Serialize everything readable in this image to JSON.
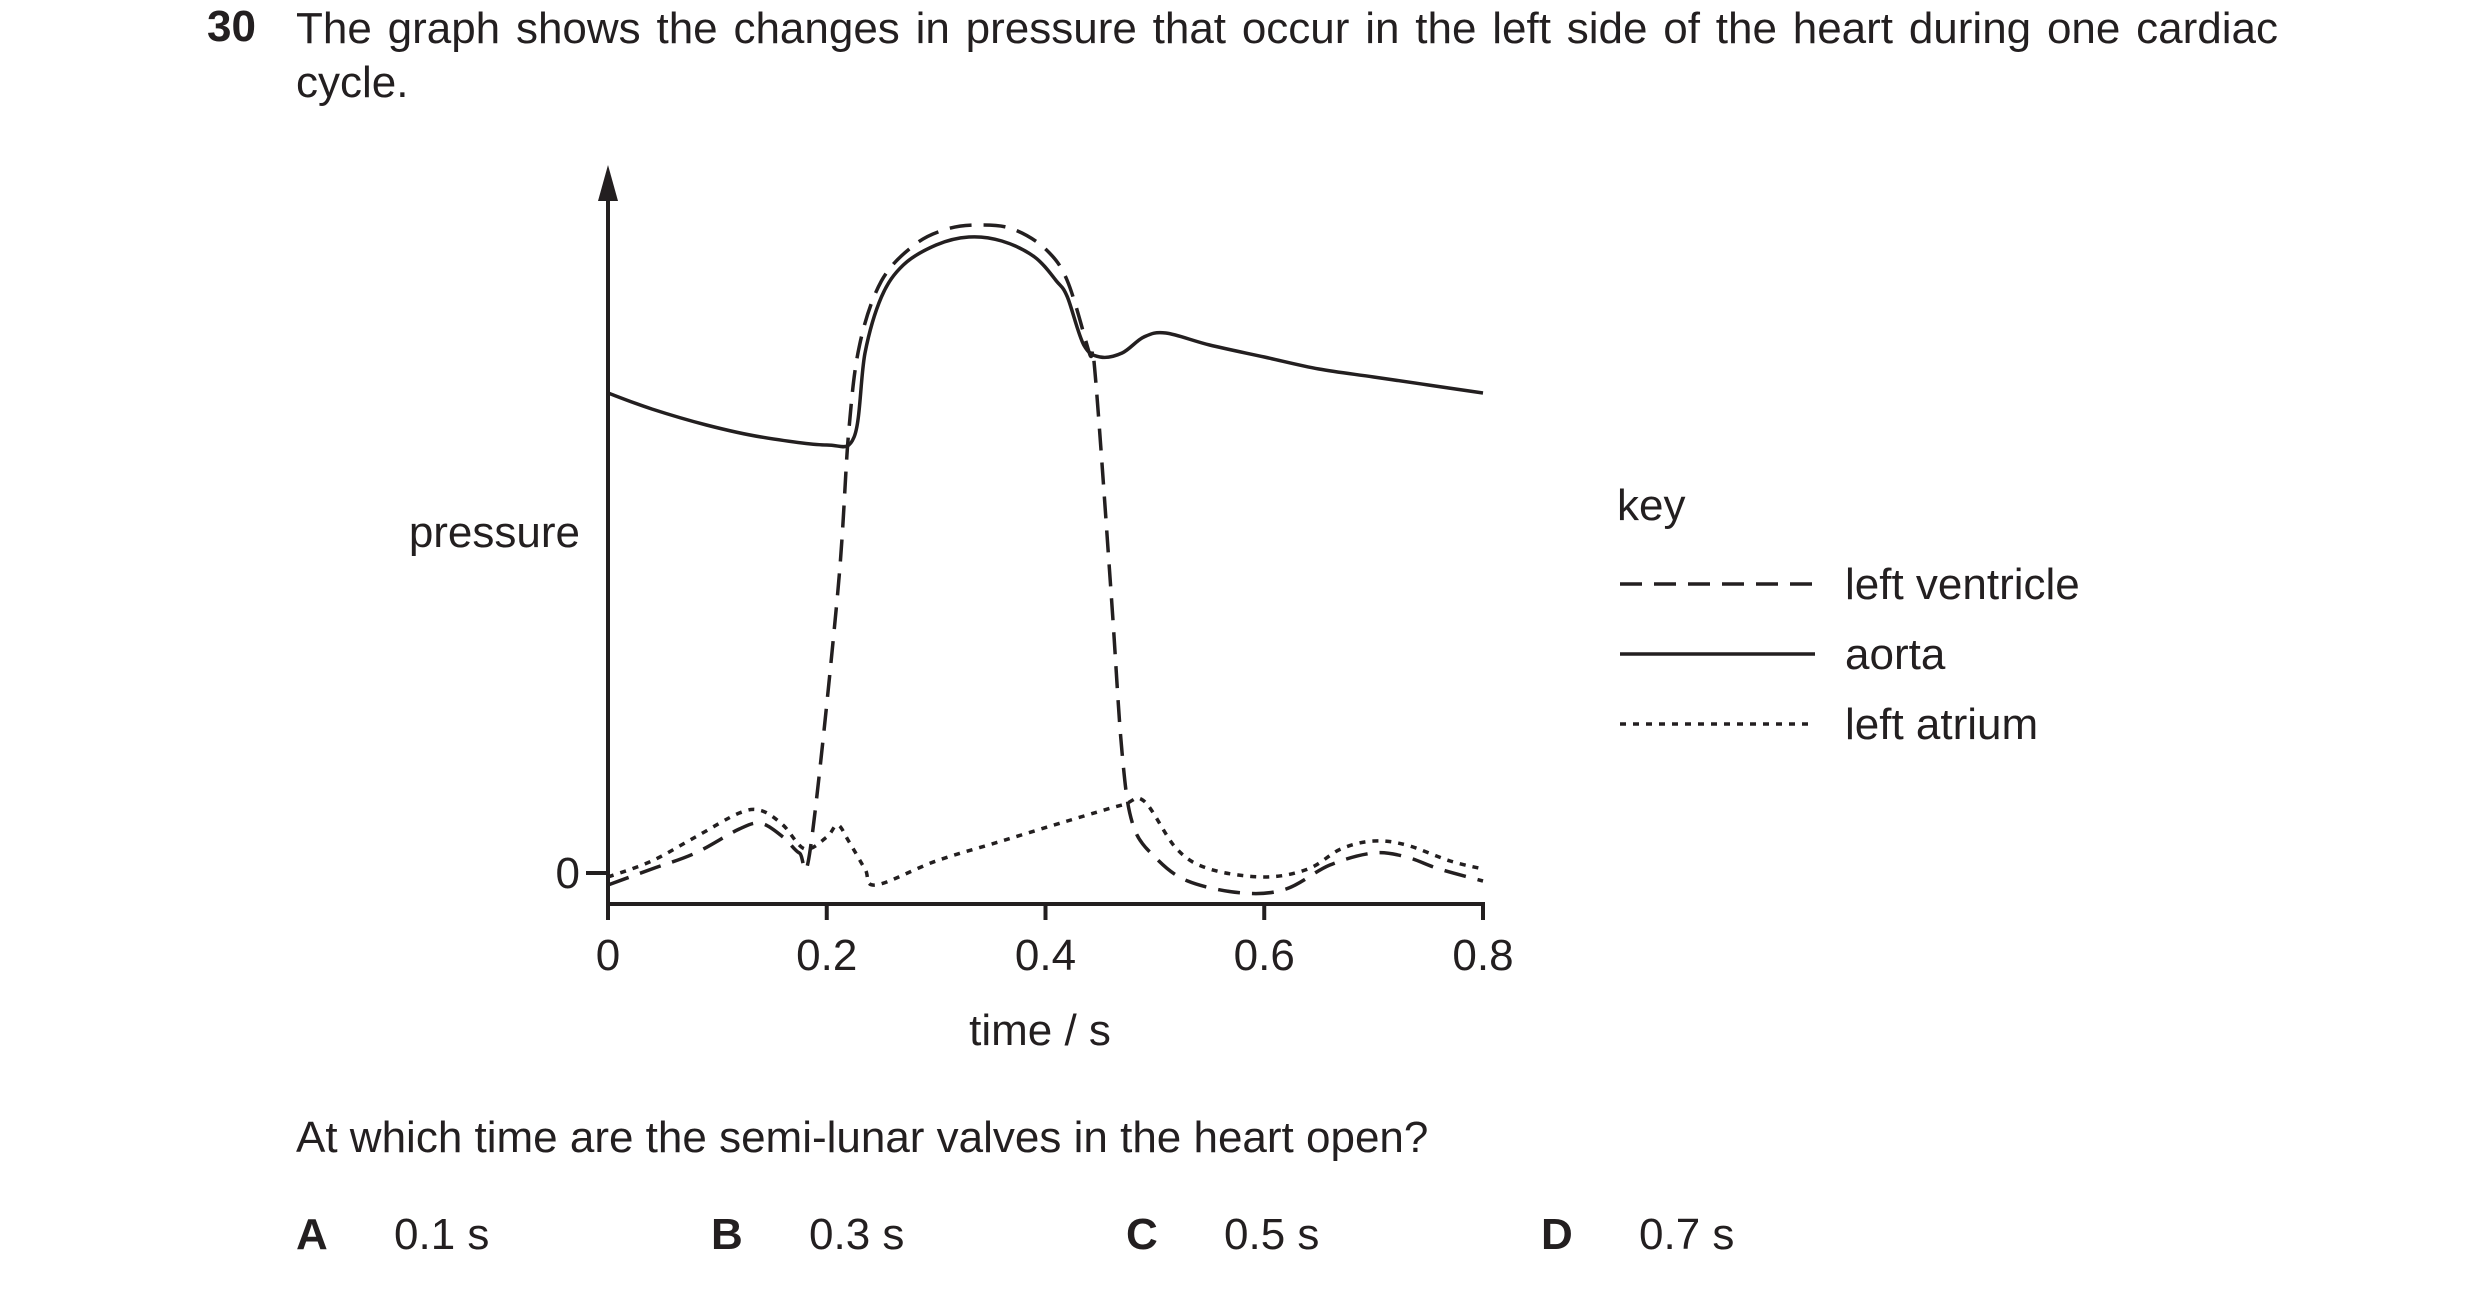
{
  "question": {
    "number": "30",
    "text": "The graph shows the changes in pressure that occur in the left side of the heart during one cardiac cycle.",
    "prompt": "At which time are the semi-lunar valves in the heart open?",
    "options": [
      {
        "letter": "A",
        "value": "0.1 s"
      },
      {
        "letter": "B",
        "value": "0.3 s"
      },
      {
        "letter": "C",
        "value": "0.5 s"
      },
      {
        "letter": "D",
        "value": "0.7 s"
      }
    ]
  },
  "chart_data": {
    "type": "line",
    "title": "",
    "xlabel": "time / s",
    "ylabel": "pressure",
    "xlim": [
      0,
      0.8
    ],
    "x_ticks": [
      "0",
      "0.2",
      "0.4",
      "0.6",
      "0.8"
    ],
    "y_ticks": [
      "0"
    ],
    "y_units_note": "arbitrary pressure scale, 0 marked only",
    "ylim": [
      -0.4,
      8.8
    ],
    "grid": false,
    "legend": {
      "title": "key",
      "placement": "right",
      "entries": [
        {
          "label": "left ventricle",
          "style": "dashed"
        },
        {
          "label": "aorta",
          "style": "solid"
        },
        {
          "label": "left atrium",
          "style": "dotted"
        }
      ]
    },
    "series": [
      {
        "name": "left ventricle",
        "style": "dashed",
        "points": [
          [
            0,
            -0.15
          ],
          [
            0.04,
            0.05
          ],
          [
            0.08,
            0.25
          ],
          [
            0.12,
            0.55
          ],
          [
            0.14,
            0.62
          ],
          [
            0.16,
            0.45
          ],
          [
            0.175,
            0.25
          ],
          [
            0.185,
            0.3
          ],
          [
            0.21,
            3.5
          ],
          [
            0.22,
            5.5
          ],
          [
            0.23,
            6.6
          ],
          [
            0.25,
            7.4
          ],
          [
            0.28,
            7.85
          ],
          [
            0.31,
            8.05
          ],
          [
            0.34,
            8.1
          ],
          [
            0.37,
            8.05
          ],
          [
            0.4,
            7.8
          ],
          [
            0.42,
            7.4
          ],
          [
            0.44,
            6.5
          ],
          [
            0.445,
            6.3
          ],
          [
            0.46,
            3.5
          ],
          [
            0.47,
            1.5
          ],
          [
            0.48,
            0.6
          ],
          [
            0.5,
            0.2
          ],
          [
            0.53,
            -0.1
          ],
          [
            0.58,
            -0.25
          ],
          [
            0.62,
            -0.2
          ],
          [
            0.66,
            0.1
          ],
          [
            0.7,
            0.25
          ],
          [
            0.73,
            0.2
          ],
          [
            0.76,
            0.05
          ],
          [
            0.8,
            -0.1
          ]
        ]
      },
      {
        "name": "aorta",
        "style": "solid",
        "points": [
          [
            0,
            6.0
          ],
          [
            0.04,
            5.8
          ],
          [
            0.09,
            5.6
          ],
          [
            0.14,
            5.45
          ],
          [
            0.2,
            5.35
          ],
          [
            0.225,
            5.45
          ],
          [
            0.235,
            6.5
          ],
          [
            0.25,
            7.2
          ],
          [
            0.27,
            7.6
          ],
          [
            0.3,
            7.85
          ],
          [
            0.33,
            7.95
          ],
          [
            0.36,
            7.9
          ],
          [
            0.39,
            7.7
          ],
          [
            0.41,
            7.4
          ],
          [
            0.42,
            7.2
          ],
          [
            0.435,
            6.6
          ],
          [
            0.45,
            6.45
          ],
          [
            0.47,
            6.5
          ],
          [
            0.49,
            6.7
          ],
          [
            0.51,
            6.75
          ],
          [
            0.55,
            6.6
          ],
          [
            0.6,
            6.45
          ],
          [
            0.65,
            6.3
          ],
          [
            0.7,
            6.2
          ],
          [
            0.75,
            6.1
          ],
          [
            0.8,
            6.0
          ]
        ]
      },
      {
        "name": "left atrium",
        "style": "dotted",
        "points": [
          [
            0,
            -0.05
          ],
          [
            0.04,
            0.15
          ],
          [
            0.08,
            0.45
          ],
          [
            0.12,
            0.75
          ],
          [
            0.14,
            0.78
          ],
          [
            0.16,
            0.6
          ],
          [
            0.18,
            0.3
          ],
          [
            0.2,
            0.45
          ],
          [
            0.21,
            0.6
          ],
          [
            0.22,
            0.4
          ],
          [
            0.235,
            0.05
          ],
          [
            0.245,
            -0.15
          ],
          [
            0.3,
            0.15
          ],
          [
            0.36,
            0.4
          ],
          [
            0.42,
            0.65
          ],
          [
            0.47,
            0.85
          ],
          [
            0.49,
            0.9
          ],
          [
            0.52,
            0.3
          ],
          [
            0.55,
            0.05
          ],
          [
            0.6,
            -0.05
          ],
          [
            0.64,
            0.05
          ],
          [
            0.67,
            0.3
          ],
          [
            0.7,
            0.4
          ],
          [
            0.73,
            0.35
          ],
          [
            0.77,
            0.15
          ],
          [
            0.8,
            0.05
          ]
        ]
      }
    ]
  }
}
